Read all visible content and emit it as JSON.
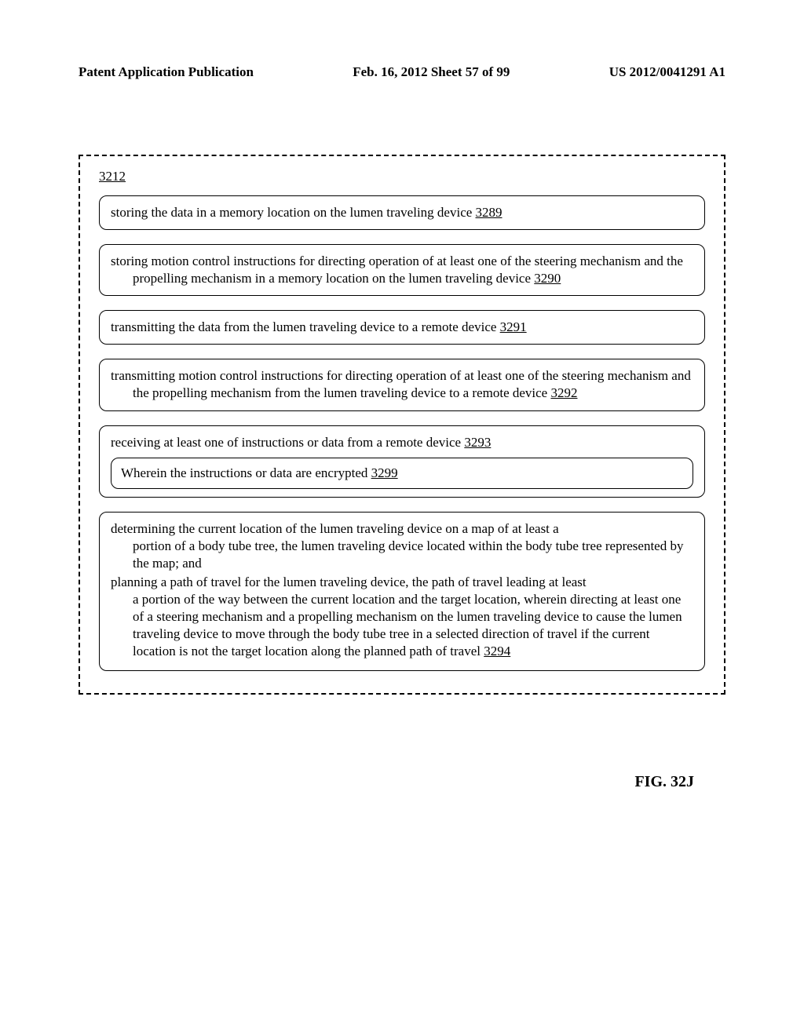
{
  "header": {
    "left": "Patent Application Publication",
    "center": "Feb. 16, 2012  Sheet 57 of 99",
    "right": "US 2012/0041291 A1"
  },
  "diagram": {
    "main_ref": "3212",
    "boxes": [
      {
        "text": "storing the data in a memory location on the lumen traveling device ",
        "ref": "3289"
      },
      {
        "text": "storing motion control instructions for directing operation of at least one of the steering mechanism and the propelling mechanism in a memory location on the lumen traveling device ",
        "ref": "3290"
      },
      {
        "text": "transmitting the data from the lumen traveling device to a remote device ",
        "ref": "3291"
      },
      {
        "text": "transmitting motion control instructions for directing operation of at least one of the steering mechanism and the propelling mechanism from the lumen traveling device to a remote device ",
        "ref": "3292"
      },
      {
        "text": "receiving at least one of instructions or data from a remote device ",
        "ref": "3293",
        "nested": {
          "text": "Wherein the instructions or data are encrypted ",
          "ref": "3299"
        }
      },
      {
        "para1_lead": "determining the current location of the lumen traveling device on a map of at least a ",
        "para1_body": "portion of a body tube tree, the lumen traveling device located within the body tube tree represented by the map; and",
        "para2_lead": "planning a path of travel for the lumen traveling device, the path of travel leading at least ",
        "para2_body": "a portion of the way between the current location and the target location, wherein directing at least one of a steering mechanism and a propelling mechanism on the lumen traveling device to cause the lumen traveling device to move through the body tube tree in a selected direction of travel if the current location is not the target location along the planned path of travel ",
        "ref": "3294"
      }
    ]
  },
  "figure_label": "FIG. 32J"
}
